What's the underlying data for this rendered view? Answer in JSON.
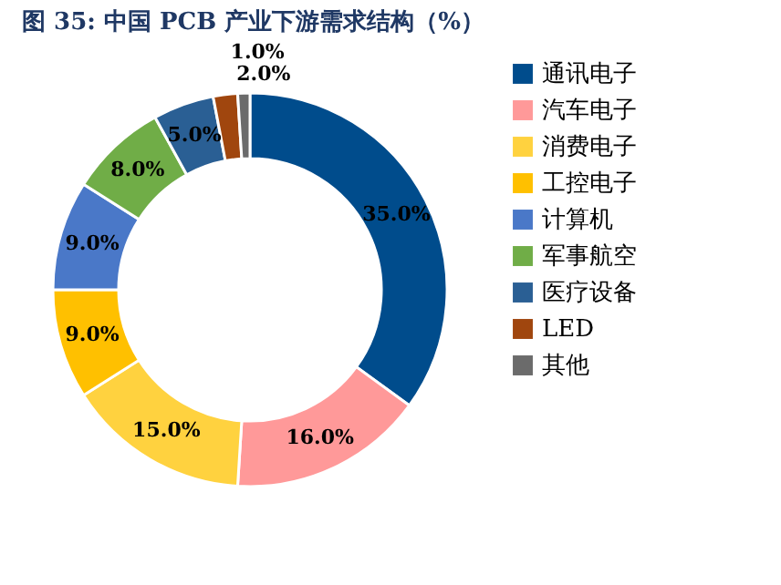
{
  "chart_data": {
    "type": "donut",
    "title": "图 35:      中国 PCB 产业下游需求结构（%）",
    "categories": [
      "通讯电子",
      "汽车电子",
      "消费电子",
      "工控电子",
      "计算机",
      "军事航空",
      "医疗设备",
      "LED",
      "其他"
    ],
    "values": [
      35,
      16,
      15,
      9,
      9,
      8,
      5,
      2,
      1
    ],
    "value_labels": [
      "35.0%",
      "16.0%",
      "15.0%",
      "9.0%",
      "9.0%",
      "8.0%",
      "5.0%",
      "2.0%",
      "1.0%"
    ],
    "colors": [
      "#004c8c",
      "#ff9999",
      "#ffd23f",
      "#ffc000",
      "#4a78c8",
      "#70ad47",
      "#2a5f94",
      "#a0460e",
      "#6b6b6b"
    ],
    "legend": "right"
  }
}
